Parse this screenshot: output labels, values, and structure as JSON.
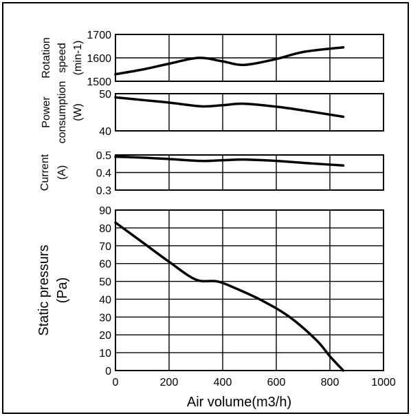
{
  "chart_data": [
    {
      "type": "line",
      "id": "rotation",
      "ylabel_lines": [
        "Rotation",
        "speed",
        "(min-1)"
      ],
      "yticks": [
        "1500",
        "1600",
        "1700"
      ],
      "ylim": [
        1500,
        1700
      ],
      "xlim": [
        0,
        1000
      ],
      "grid": true,
      "series": [
        {
          "x": [
            0,
            100,
            200,
            310,
            400,
            480,
            600,
            700,
            850
          ],
          "y": [
            1530,
            1550,
            1575,
            1600,
            1585,
            1570,
            1595,
            1625,
            1645
          ]
        }
      ]
    },
    {
      "type": "line",
      "id": "power",
      "ylabel_lines": [
        "Power",
        "consumption",
        "(W)"
      ],
      "yticks": [
        "40",
        "50"
      ],
      "ylim": [
        40,
        50
      ],
      "xlim": [
        0,
        1000
      ],
      "grid": true,
      "series": [
        {
          "x": [
            0,
            100,
            200,
            320,
            400,
            480,
            600,
            700,
            850
          ],
          "y": [
            49.0,
            48.3,
            47.6,
            46.6,
            46.9,
            47.3,
            46.5,
            45.5,
            43.8
          ]
        }
      ]
    },
    {
      "type": "line",
      "id": "current",
      "ylabel_lines": [
        "Current",
        "(A)"
      ],
      "yticks": [
        "0.3",
        "0.4",
        "0.5"
      ],
      "ylim": [
        0.3,
        0.5
      ],
      "xlim": [
        0,
        1000
      ],
      "grid": true,
      "series": [
        {
          "x": [
            0,
            100,
            200,
            320,
            400,
            480,
            600,
            700,
            850
          ],
          "y": [
            0.49,
            0.485,
            0.477,
            0.466,
            0.47,
            0.474,
            0.466,
            0.455,
            0.44
          ]
        }
      ]
    },
    {
      "type": "line",
      "id": "pressure",
      "ylabel_lines": [
        "Static pressurs",
        "(Pa)"
      ],
      "yticks": [
        "0",
        "10",
        "20",
        "30",
        "40",
        "50",
        "60",
        "70",
        "80",
        "90"
      ],
      "ylim": [
        0,
        90
      ],
      "xlim": [
        0,
        1000
      ],
      "xticks": [
        "0",
        "200",
        "400",
        "600",
        "800",
        "1000"
      ],
      "xlabel": "Air volume(m3/h)",
      "grid": true,
      "series": [
        {
          "x": [
            0,
            100,
            200,
            300,
            380,
            450,
            550,
            650,
            750,
            800,
            850
          ],
          "y": [
            83,
            72,
            61,
            51,
            50,
            46,
            39,
            30,
            17,
            8,
            0
          ]
        }
      ]
    }
  ]
}
